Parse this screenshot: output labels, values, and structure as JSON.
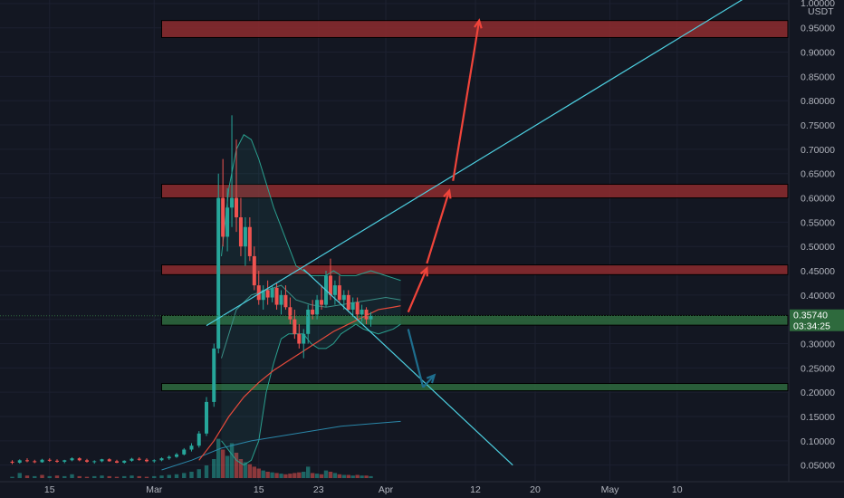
{
  "app": {
    "currency": "USDT"
  },
  "price_tag": {
    "value": "0.35740",
    "countdown": "03:34:25",
    "color": "#2e6a3d"
  },
  "colors": {
    "background": "#131722",
    "up": "#26a69a",
    "down": "#ef5350",
    "resistance_zone": "#8e2b2e",
    "support_zone": "#2e6a3d",
    "trendline": "#4dd0e1",
    "arrow_up": "#f0443a",
    "arrow_down": "#1e6e8e",
    "bollinger": "#2aa08f",
    "ma_fast": "#e64a3b",
    "ma_slow": "#2a86a8"
  },
  "chart_data": {
    "type": "candlestick",
    "title": "",
    "xlabel": "",
    "ylabel": "USDT",
    "y_ticks": [
      "1.00000",
      "0.95000",
      "0.90000",
      "0.85000",
      "0.80000",
      "0.75000",
      "0.70000",
      "0.65000",
      "0.60000",
      "0.55000",
      "0.50000",
      "0.45000",
      "0.40000",
      "0.35000",
      "0.30000",
      "0.25000",
      "0.20000",
      "0.15000",
      "0.10000",
      "0.05000"
    ],
    "x_ticks": [
      {
        "label": "15",
        "day": 15
      },
      {
        "label": "Mar",
        "day": 29
      },
      {
        "label": "15",
        "day": 43
      },
      {
        "label": "23",
        "day": 51
      },
      {
        "label": "Apr",
        "day": 60
      },
      {
        "label": "12",
        "day": 72
      },
      {
        "label": "20",
        "day": 80
      },
      {
        "label": "May",
        "day": 90
      },
      {
        "label": "10",
        "day": 99
      }
    ],
    "zones": [
      {
        "kind": "resistance",
        "y_low": 0.93,
        "y_high": 0.965,
        "day_start": 30
      },
      {
        "kind": "resistance",
        "y_low": 0.6,
        "y_high": 0.628,
        "day_start": 30
      },
      {
        "kind": "resistance",
        "y_low": 0.442,
        "y_high": 0.462,
        "day_start": 30
      },
      {
        "kind": "support",
        "y_low": 0.338,
        "y_high": 0.358,
        "day_start": 30
      },
      {
        "kind": "support",
        "y_low": 0.203,
        "y_high": 0.218,
        "day_start": 30
      }
    ],
    "trendlines": [
      {
        "from": {
          "day": 36,
          "y": 0.337
        },
        "to": {
          "day": 109,
          "y": 1.02
        }
      },
      {
        "from": {
          "day": 49,
          "y": 0.453
        },
        "to": {
          "day": 77,
          "y": 0.05
        }
      }
    ],
    "arrows": [
      {
        "color": "up",
        "from": {
          "day": 63,
          "y": 0.365
        },
        "to": {
          "day": 65.5,
          "y": 0.455
        }
      },
      {
        "color": "up",
        "from": {
          "day": 65.5,
          "y": 0.465
        },
        "to": {
          "day": 68.5,
          "y": 0.615
        }
      },
      {
        "color": "up",
        "from": {
          "day": 69,
          "y": 0.635
        },
        "to": {
          "day": 72.5,
          "y": 0.965
        }
      },
      {
        "color": "down",
        "from": {
          "day": 63,
          "y": 0.33
        },
        "to": {
          "day": 65,
          "y": 0.21
        }
      },
      {
        "color": "down",
        "from": {
          "day": 65,
          "y": 0.21
        },
        "to": {
          "day": 66.5,
          "y": 0.235
        }
      }
    ],
    "bollinger_upper": [
      [
        38,
        0.48
      ],
      [
        39,
        0.62
      ],
      [
        40,
        0.7
      ],
      [
        41,
        0.73
      ],
      [
        42,
        0.72
      ],
      [
        43,
        0.68
      ],
      [
        44,
        0.63
      ],
      [
        45,
        0.58
      ],
      [
        46,
        0.54
      ],
      [
        47,
        0.5
      ],
      [
        48,
        0.46
      ],
      [
        49,
        0.45
      ],
      [
        50,
        0.44
      ],
      [
        51,
        0.44
      ],
      [
        52,
        0.44
      ],
      [
        53,
        0.45
      ],
      [
        54,
        0.44
      ],
      [
        55,
        0.44
      ],
      [
        56,
        0.44
      ],
      [
        57,
        0.445
      ],
      [
        58,
        0.45
      ],
      [
        59,
        0.445
      ],
      [
        60,
        0.44
      ],
      [
        61,
        0.435
      ],
      [
        62,
        0.43
      ]
    ],
    "bollinger_lower": [
      [
        38,
        0.1
      ],
      [
        39,
        0.08
      ],
      [
        40,
        0.06
      ],
      [
        41,
        0.05
      ],
      [
        42,
        0.06
      ],
      [
        43,
        0.1
      ],
      [
        44,
        0.2
      ],
      [
        45,
        0.26
      ],
      [
        46,
        0.31
      ],
      [
        47,
        0.32
      ],
      [
        48,
        0.32
      ],
      [
        49,
        0.32
      ],
      [
        50,
        0.3
      ],
      [
        51,
        0.29
      ],
      [
        52,
        0.29
      ],
      [
        53,
        0.3
      ],
      [
        54,
        0.32
      ],
      [
        55,
        0.33
      ],
      [
        56,
        0.34
      ],
      [
        57,
        0.33
      ],
      [
        58,
        0.325
      ],
      [
        59,
        0.32
      ],
      [
        60,
        0.325
      ],
      [
        61,
        0.33
      ],
      [
        62,
        0.34
      ]
    ],
    "bollinger_mid": [
      [
        38,
        0.27
      ],
      [
        40,
        0.37
      ],
      [
        42,
        0.4
      ],
      [
        44,
        0.41
      ],
      [
        46,
        0.42
      ],
      [
        48,
        0.39
      ],
      [
        50,
        0.38
      ],
      [
        52,
        0.375
      ],
      [
        54,
        0.38
      ],
      [
        56,
        0.385
      ],
      [
        58,
        0.39
      ],
      [
        60,
        0.395
      ],
      [
        62,
        0.39
      ]
    ],
    "ma_fast": [
      [
        35,
        0.06
      ],
      [
        37,
        0.1
      ],
      [
        39,
        0.15
      ],
      [
        41,
        0.19
      ],
      [
        43,
        0.22
      ],
      [
        45,
        0.245
      ],
      [
        47,
        0.265
      ],
      [
        49,
        0.285
      ],
      [
        51,
        0.305
      ],
      [
        53,
        0.325
      ],
      [
        55,
        0.34
      ],
      [
        57,
        0.355
      ],
      [
        59,
        0.37
      ],
      [
        61,
        0.375
      ],
      [
        62,
        0.378
      ]
    ],
    "ma_slow": [
      [
        30,
        0.04
      ],
      [
        34,
        0.06
      ],
      [
        38,
        0.085
      ],
      [
        42,
        0.1
      ],
      [
        46,
        0.11
      ],
      [
        50,
        0.12
      ],
      [
        54,
        0.13
      ],
      [
        58,
        0.135
      ],
      [
        62,
        0.14
      ]
    ],
    "candles": [
      {
        "day": 10,
        "o": 0.057,
        "h": 0.06,
        "l": 0.052,
        "c": 0.055
      },
      {
        "day": 11,
        "o": 0.055,
        "h": 0.062,
        "l": 0.053,
        "c": 0.06
      },
      {
        "day": 12,
        "o": 0.06,
        "h": 0.064,
        "l": 0.056,
        "c": 0.058
      },
      {
        "day": 13,
        "o": 0.058,
        "h": 0.061,
        "l": 0.054,
        "c": 0.056
      },
      {
        "day": 14,
        "o": 0.056,
        "h": 0.063,
        "l": 0.055,
        "c": 0.061
      },
      {
        "day": 15,
        "o": 0.061,
        "h": 0.064,
        "l": 0.057,
        "c": 0.059
      },
      {
        "day": 16,
        "o": 0.059,
        "h": 0.062,
        "l": 0.055,
        "c": 0.057
      },
      {
        "day": 17,
        "o": 0.057,
        "h": 0.061,
        "l": 0.054,
        "c": 0.06
      },
      {
        "day": 18,
        "o": 0.06,
        "h": 0.066,
        "l": 0.058,
        "c": 0.064
      },
      {
        "day": 19,
        "o": 0.064,
        "h": 0.066,
        "l": 0.058,
        "c": 0.06
      },
      {
        "day": 20,
        "o": 0.06,
        "h": 0.063,
        "l": 0.055,
        "c": 0.057
      },
      {
        "day": 21,
        "o": 0.057,
        "h": 0.06,
        "l": 0.053,
        "c": 0.058
      },
      {
        "day": 22,
        "o": 0.058,
        "h": 0.063,
        "l": 0.056,
        "c": 0.062
      },
      {
        "day": 23,
        "o": 0.062,
        "h": 0.064,
        "l": 0.057,
        "c": 0.058
      },
      {
        "day": 24,
        "o": 0.058,
        "h": 0.061,
        "l": 0.054,
        "c": 0.055
      },
      {
        "day": 25,
        "o": 0.055,
        "h": 0.06,
        "l": 0.053,
        "c": 0.059
      },
      {
        "day": 26,
        "o": 0.059,
        "h": 0.065,
        "l": 0.057,
        "c": 0.063
      },
      {
        "day": 27,
        "o": 0.063,
        "h": 0.066,
        "l": 0.059,
        "c": 0.061
      },
      {
        "day": 28,
        "o": 0.061,
        "h": 0.064,
        "l": 0.056,
        "c": 0.058
      },
      {
        "day": 29,
        "o": 0.058,
        "h": 0.062,
        "l": 0.055,
        "c": 0.06
      },
      {
        "day": 30,
        "o": 0.06,
        "h": 0.066,
        "l": 0.058,
        "c": 0.064
      },
      {
        "day": 31,
        "o": 0.064,
        "h": 0.07,
        "l": 0.061,
        "c": 0.067
      },
      {
        "day": 32,
        "o": 0.067,
        "h": 0.075,
        "l": 0.065,
        "c": 0.072
      },
      {
        "day": 33,
        "o": 0.072,
        "h": 0.085,
        "l": 0.07,
        "c": 0.082
      },
      {
        "day": 34,
        "o": 0.082,
        "h": 0.095,
        "l": 0.078,
        "c": 0.09
      },
      {
        "day": 35,
        "o": 0.09,
        "h": 0.12,
        "l": 0.086,
        "c": 0.115
      },
      {
        "day": 36,
        "o": 0.115,
        "h": 0.19,
        "l": 0.11,
        "c": 0.18
      },
      {
        "day": 37,
        "o": 0.18,
        "h": 0.3,
        "l": 0.17,
        "c": 0.29
      },
      {
        "day": 37.6,
        "o": 0.29,
        "h": 0.65,
        "l": 0.28,
        "c": 0.6
      },
      {
        "day": 38.2,
        "o": 0.6,
        "h": 0.68,
        "l": 0.5,
        "c": 0.52
      },
      {
        "day": 38.8,
        "o": 0.52,
        "h": 0.62,
        "l": 0.49,
        "c": 0.58
      },
      {
        "day": 39.4,
        "o": 0.58,
        "h": 0.77,
        "l": 0.54,
        "c": 0.6
      },
      {
        "day": 40,
        "o": 0.6,
        "h": 0.72,
        "l": 0.53,
        "c": 0.56
      },
      {
        "day": 40.6,
        "o": 0.56,
        "h": 0.6,
        "l": 0.48,
        "c": 0.5
      },
      {
        "day": 41.2,
        "o": 0.5,
        "h": 0.56,
        "l": 0.46,
        "c": 0.54
      },
      {
        "day": 41.8,
        "o": 0.54,
        "h": 0.56,
        "l": 0.47,
        "c": 0.48
      },
      {
        "day": 42.4,
        "o": 0.48,
        "h": 0.5,
        "l": 0.41,
        "c": 0.42
      },
      {
        "day": 43,
        "o": 0.42,
        "h": 0.45,
        "l": 0.38,
        "c": 0.39
      },
      {
        "day": 43.6,
        "o": 0.39,
        "h": 0.42,
        "l": 0.37,
        "c": 0.41
      },
      {
        "day": 44.2,
        "o": 0.41,
        "h": 0.43,
        "l": 0.38,
        "c": 0.395
      },
      {
        "day": 44.8,
        "o": 0.395,
        "h": 0.42,
        "l": 0.385,
        "c": 0.415
      },
      {
        "day": 45.4,
        "o": 0.415,
        "h": 0.425,
        "l": 0.37,
        "c": 0.38
      },
      {
        "day": 46,
        "o": 0.38,
        "h": 0.41,
        "l": 0.36,
        "c": 0.4
      },
      {
        "day": 46.6,
        "o": 0.4,
        "h": 0.42,
        "l": 0.37,
        "c": 0.375
      },
      {
        "day": 47.2,
        "o": 0.375,
        "h": 0.395,
        "l": 0.34,
        "c": 0.35
      },
      {
        "day": 47.8,
        "o": 0.35,
        "h": 0.37,
        "l": 0.31,
        "c": 0.32
      },
      {
        "day": 48.4,
        "o": 0.32,
        "h": 0.34,
        "l": 0.29,
        "c": 0.3
      },
      {
        "day": 49,
        "o": 0.3,
        "h": 0.33,
        "l": 0.27,
        "c": 0.32
      },
      {
        "day": 49.6,
        "o": 0.32,
        "h": 0.38,
        "l": 0.3,
        "c": 0.37
      },
      {
        "day": 50.2,
        "o": 0.37,
        "h": 0.39,
        "l": 0.35,
        "c": 0.36
      },
      {
        "day": 50.8,
        "o": 0.36,
        "h": 0.4,
        "l": 0.35,
        "c": 0.39
      },
      {
        "day": 51.4,
        "o": 0.39,
        "h": 0.42,
        "l": 0.37,
        "c": 0.38
      },
      {
        "day": 52,
        "o": 0.38,
        "h": 0.45,
        "l": 0.375,
        "c": 0.44
      },
      {
        "day": 52.6,
        "o": 0.44,
        "h": 0.475,
        "l": 0.39,
        "c": 0.4
      },
      {
        "day": 53.2,
        "o": 0.4,
        "h": 0.43,
        "l": 0.38,
        "c": 0.42
      },
      {
        "day": 53.8,
        "o": 0.42,
        "h": 0.44,
        "l": 0.385,
        "c": 0.39
      },
      {
        "day": 54.4,
        "o": 0.39,
        "h": 0.41,
        "l": 0.37,
        "c": 0.4
      },
      {
        "day": 55,
        "o": 0.4,
        "h": 0.41,
        "l": 0.365,
        "c": 0.37
      },
      {
        "day": 55.6,
        "o": 0.37,
        "h": 0.395,
        "l": 0.355,
        "c": 0.385
      },
      {
        "day": 56.2,
        "o": 0.385,
        "h": 0.395,
        "l": 0.35,
        "c": 0.36
      },
      {
        "day": 56.8,
        "o": 0.36,
        "h": 0.38,
        "l": 0.345,
        "c": 0.37
      },
      {
        "day": 57.4,
        "o": 0.37,
        "h": 0.375,
        "l": 0.34,
        "c": 0.35
      },
      {
        "day": 58,
        "o": 0.35,
        "h": 0.365,
        "l": 0.335,
        "c": 0.357
      }
    ],
    "volume": [
      {
        "day": 10,
        "v": 0.02,
        "up": true
      },
      {
        "day": 11,
        "v": 0.08,
        "up": true
      },
      {
        "day": 12,
        "v": 0.04,
        "up": false
      },
      {
        "day": 13,
        "v": 0.03,
        "up": true
      },
      {
        "day": 14,
        "v": 0.05,
        "up": false
      },
      {
        "day": 15,
        "v": 0.03,
        "up": true
      },
      {
        "day": 16,
        "v": 0.04,
        "up": false
      },
      {
        "day": 17,
        "v": 0.03,
        "up": true
      },
      {
        "day": 18,
        "v": 0.06,
        "up": true
      },
      {
        "day": 19,
        "v": 0.03,
        "up": false
      },
      {
        "day": 20,
        "v": 0.02,
        "up": false
      },
      {
        "day": 21,
        "v": 0.03,
        "up": true
      },
      {
        "day": 22,
        "v": 0.04,
        "up": true
      },
      {
        "day": 23,
        "v": 0.03,
        "up": false
      },
      {
        "day": 24,
        "v": 0.02,
        "up": false
      },
      {
        "day": 25,
        "v": 0.03,
        "up": true
      },
      {
        "day": 26,
        "v": 0.04,
        "up": true
      },
      {
        "day": 27,
        "v": 0.03,
        "up": false
      },
      {
        "day": 28,
        "v": 0.02,
        "up": false
      },
      {
        "day": 29,
        "v": 0.03,
        "up": true
      },
      {
        "day": 30,
        "v": 0.04,
        "up": true
      },
      {
        "day": 31,
        "v": 0.05,
        "up": true
      },
      {
        "day": 32,
        "v": 0.06,
        "up": true
      },
      {
        "day": 33,
        "v": 0.08,
        "up": true
      },
      {
        "day": 34,
        "v": 0.1,
        "up": true
      },
      {
        "day": 35,
        "v": 0.14,
        "up": true
      },
      {
        "day": 36,
        "v": 0.2,
        "up": true
      },
      {
        "day": 37,
        "v": 0.3,
        "up": true
      },
      {
        "day": 37.6,
        "v": 0.62,
        "up": true
      },
      {
        "day": 38.2,
        "v": 0.45,
        "up": false
      },
      {
        "day": 38.8,
        "v": 0.35,
        "up": true
      },
      {
        "day": 39.4,
        "v": 0.55,
        "up": true
      },
      {
        "day": 40,
        "v": 0.4,
        "up": false
      },
      {
        "day": 40.6,
        "v": 0.3,
        "up": false
      },
      {
        "day": 41.2,
        "v": 0.25,
        "up": true
      },
      {
        "day": 41.8,
        "v": 0.22,
        "up": false
      },
      {
        "day": 42.4,
        "v": 0.18,
        "up": false
      },
      {
        "day": 43,
        "v": 0.15,
        "up": false
      },
      {
        "day": 43.6,
        "v": 0.12,
        "up": true
      },
      {
        "day": 44.2,
        "v": 0.1,
        "up": false
      },
      {
        "day": 44.8,
        "v": 0.09,
        "up": true
      },
      {
        "day": 45.4,
        "v": 0.08,
        "up": false
      },
      {
        "day": 46,
        "v": 0.07,
        "up": true
      },
      {
        "day": 46.6,
        "v": 0.06,
        "up": false
      },
      {
        "day": 47.2,
        "v": 0.07,
        "up": false
      },
      {
        "day": 47.8,
        "v": 0.08,
        "up": false
      },
      {
        "day": 48.4,
        "v": 0.09,
        "up": false
      },
      {
        "day": 49,
        "v": 0.1,
        "up": true
      },
      {
        "day": 49.6,
        "v": 0.18,
        "up": true
      },
      {
        "day": 50.2,
        "v": 0.08,
        "up": false
      },
      {
        "day": 50.8,
        "v": 0.07,
        "up": true
      },
      {
        "day": 51.4,
        "v": 0.06,
        "up": false
      },
      {
        "day": 52,
        "v": 0.12,
        "up": true
      },
      {
        "day": 52.6,
        "v": 0.1,
        "up": false
      },
      {
        "day": 53.2,
        "v": 0.08,
        "up": true
      },
      {
        "day": 53.8,
        "v": 0.06,
        "up": false
      },
      {
        "day": 54.4,
        "v": 0.05,
        "up": true
      },
      {
        "day": 55,
        "v": 0.05,
        "up": false
      },
      {
        "day": 55.6,
        "v": 0.04,
        "up": true
      },
      {
        "day": 56.2,
        "v": 0.05,
        "up": false
      },
      {
        "day": 56.8,
        "v": 0.04,
        "up": true
      },
      {
        "day": 57.4,
        "v": 0.04,
        "up": false
      },
      {
        "day": 58,
        "v": 0.03,
        "up": true
      }
    ]
  }
}
